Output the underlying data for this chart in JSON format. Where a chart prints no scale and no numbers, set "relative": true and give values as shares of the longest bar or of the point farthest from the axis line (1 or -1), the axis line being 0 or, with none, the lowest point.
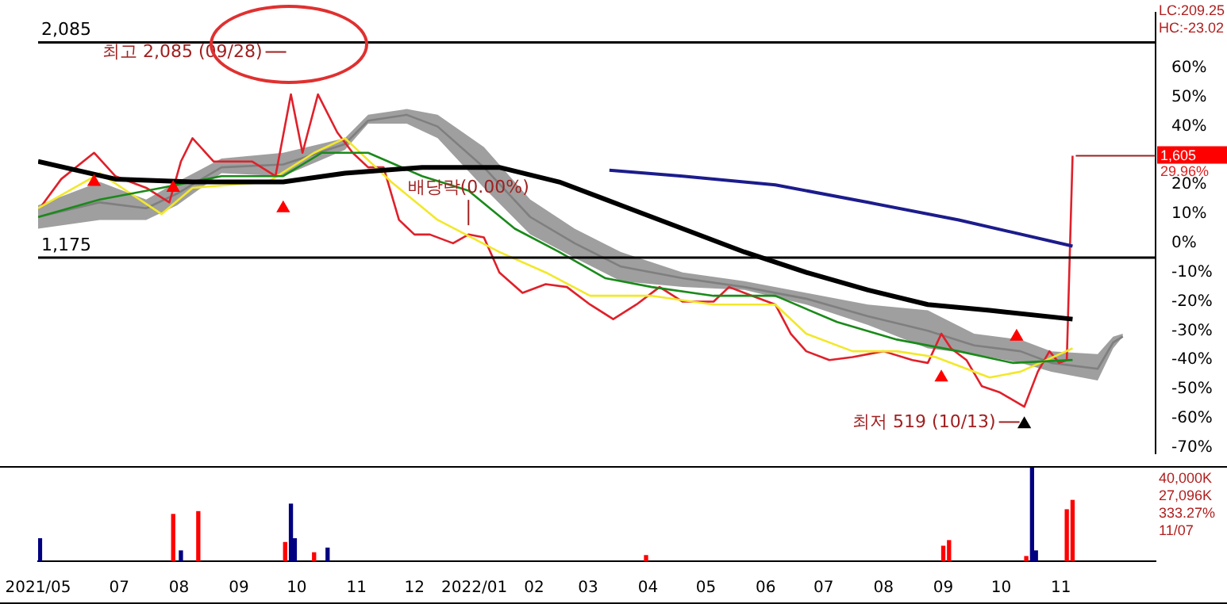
{
  "chart_data": [
    {
      "type": "line",
      "xlim": [
        "2021-05-20",
        "2022-12-20"
      ],
      "ylim": [
        -72,
        79
      ],
      "yticks": [
        {
          "value": 60,
          "label": "60%"
        },
        {
          "value": 50,
          "label": "50%"
        },
        {
          "value": 40,
          "label": "40%"
        },
        {
          "value": 20,
          "label": "20%"
        },
        {
          "value": 10,
          "label": "10%"
        },
        {
          "value": 0,
          "label": "0%"
        },
        {
          "value": -10,
          "label": "-10%"
        },
        {
          "value": -20,
          "label": "-20%"
        },
        {
          "value": -30,
          "label": "-30%"
        },
        {
          "value": -40,
          "label": "-40%"
        },
        {
          "value": -50,
          "label": "-50%"
        },
        {
          "value": -60,
          "label": "-60%"
        },
        {
          "value": -70,
          "label": "-70%"
        }
      ],
      "tick_labels": "y",
      "marker": "none",
      "line_style": "solid",
      "ref_lines": [
        {
          "axis": "y",
          "value": 68.8,
          "color": "#000000"
        },
        {
          "axis": "y",
          "value": -4.9,
          "color": "#000000"
        }
      ],
      "annotations": [
        {
          "text": "2,085",
          "x": "2021-05-20",
          "y": 68.8
        },
        {
          "text": "1,175",
          "x": "2021-05-20",
          "y": -4.9
        },
        {
          "text": "최고 2,085 (09/28)",
          "x": "2021-09-28",
          "y": 68.8
        },
        {
          "text": "최저 519 (10/13)",
          "x": "2022-10-13",
          "y": -58
        },
        {
          "text": "배당락(0.00%)",
          "x": "2021-12-29",
          "y": 4
        },
        {
          "text": "1,605",
          "x": "2022-11-07",
          "y": 29.96
        },
        {
          "text": "29.96%",
          "x": "2022-11-07",
          "y": 29.96
        },
        "LC:209.25",
        "HC:-23.02"
      ],
      "series": [
        {
          "color": "#7f7f7f",
          "x": [
            "2021-05-20",
            "2021-06-21",
            "2021-07-15",
            "2021-07-31",
            "2021-08-23",
            "2021-09-24",
            "2021-10-26",
            "2021-11-07",
            "2021-11-27",
            "2021-12-13",
            "2022-01-06",
            "2022-01-30",
            "2022-02-22",
            "2022-03-18",
            "2022-04-19",
            "2022-05-21",
            "2022-06-22",
            "2022-07-24",
            "2022-08-24",
            "2022-09-17",
            "2022-10-11",
            "2022-10-27",
            "2022-11-20",
            "2022-11-28",
            "2022-12-03"
          ],
          "values": [
            9,
            14,
            12,
            17,
            26,
            27,
            34,
            42,
            44,
            40,
            26,
            9,
            0,
            -8,
            -12,
            -15,
            -19,
            -25,
            -30,
            -35,
            -37,
            -41,
            -43,
            -34,
            -32
          ],
          "lower": [
            5,
            8,
            8,
            13,
            24,
            23,
            32,
            41,
            41,
            36,
            19,
            3,
            -5,
            -13,
            -15,
            -16,
            -21,
            -28,
            -36,
            -38,
            -41,
            -44,
            -47,
            -36,
            -32
          ],
          "upper": [
            13,
            21,
            15,
            21,
            29,
            31,
            36,
            44,
            46,
            44,
            33,
            15,
            5,
            -3,
            -10,
            -13,
            -17,
            -21,
            -23,
            -31,
            -33,
            -37,
            -38,
            -32,
            -31
          ]
        },
        {
          "color": "#1c1c8c",
          "x": [
            "2022-03-12",
            "2022-04-19",
            "2022-06-06",
            "2022-07-24",
            "2022-09-09",
            "2022-11-07"
          ],
          "values": [
            25,
            23,
            20,
            14,
            8,
            -1
          ]
        },
        {
          "color": "#000000",
          "x": [
            "2021-05-20",
            "2021-06-29",
            "2021-08-08",
            "2021-09-24",
            "2021-10-26",
            "2021-12-05",
            "2022-01-14",
            "2022-02-14",
            "2022-03-18",
            "2022-04-19",
            "2022-05-21",
            "2022-06-22",
            "2022-07-24",
            "2022-08-24",
            "2022-09-25",
            "2022-11-07"
          ],
          "values": [
            28,
            22,
            21,
            21,
            24,
            26,
            26,
            21,
            13,
            5,
            -3,
            -10,
            -16,
            -21,
            -23,
            -26
          ]
        },
        {
          "color": "#1a8a1a",
          "x": [
            "2021-05-20",
            "2021-06-21",
            "2021-07-23",
            "2021-08-23",
            "2021-09-24",
            "2021-10-14",
            "2021-11-07",
            "2021-12-05",
            "2021-12-29",
            "2022-01-22",
            "2022-02-14",
            "2022-03-10",
            "2022-04-03",
            "2022-05-05",
            "2022-06-06",
            "2022-07-08",
            "2022-08-08",
            "2022-09-09",
            "2022-10-07",
            "2022-11-07"
          ],
          "values": [
            9,
            15,
            19,
            23,
            23,
            31,
            31,
            23,
            18,
            5,
            -3,
            -12,
            -15,
            -18,
            -18,
            -27,
            -33,
            -37,
            -41,
            -40
          ]
        },
        {
          "color": "#f2e82a",
          "x": [
            "2021-05-20",
            "2021-06-21",
            "2021-07-23",
            "2021-08-08",
            "2021-09-16",
            "2021-10-10",
            "2021-10-26",
            "2021-11-19",
            "2021-12-13",
            "2022-01-14",
            "2022-02-07",
            "2022-03-02",
            "2022-04-03",
            "2022-05-05",
            "2022-06-06",
            "2022-06-22",
            "2022-07-16",
            "2022-08-08",
            "2022-08-28",
            "2022-09-25",
            "2022-10-11",
            "2022-11-07"
          ],
          "values": [
            12,
            24,
            10,
            19,
            21,
            31,
            36,
            21,
            8,
            -3,
            -10,
            -18,
            -18,
            -21,
            -21,
            -31,
            -37,
            -37,
            -39,
            -46,
            -44,
            -36
          ]
        },
        {
          "color": "#e0202a",
          "x": [
            "2021-05-22",
            "2021-06-01",
            "2021-06-18",
            "2021-06-29",
            "2021-07-15",
            "2021-07-27",
            "2021-08-02",
            "2021-08-08",
            "2021-08-19",
            "2021-08-27",
            "2021-09-08",
            "2021-09-20",
            "2021-09-28",
            "2021-10-04",
            "2021-10-12",
            "2021-10-22",
            "2021-10-30",
            "2021-11-07",
            "2021-11-15",
            "2021-11-23",
            "2021-12-01",
            "2021-12-09",
            "2021-12-21",
            "2021-12-29",
            "2022-01-06",
            "2022-01-14",
            "2022-01-26",
            "2022-02-07",
            "2022-02-18",
            "2022-03-02",
            "2022-03-14",
            "2022-03-26",
            "2022-04-07",
            "2022-04-19",
            "2022-05-05",
            "2022-05-13",
            "2022-05-25",
            "2022-06-06",
            "2022-06-14",
            "2022-06-22",
            "2022-07-04",
            "2022-07-16",
            "2022-08-01",
            "2022-08-16",
            "2022-08-24",
            "2022-08-31",
            "2022-09-05",
            "2022-09-13",
            "2022-09-21",
            "2022-09-30",
            "2022-10-13",
            "2022-10-20",
            "2022-10-26",
            "2022-10-31",
            "2022-11-04",
            "2022-11-07"
          ],
          "values": [
            13,
            22,
            31,
            23,
            19,
            14,
            28,
            36,
            28,
            28,
            28,
            23,
            51,
            31,
            51,
            38,
            31,
            26,
            26,
            8,
            3,
            3,
            0,
            3,
            2,
            -10,
            -17,
            -14,
            -15,
            -21,
            -26,
            -21,
            -15,
            -20,
            -20,
            -15,
            -18,
            -21,
            -31,
            -37,
            -40,
            -39,
            -37,
            -40,
            -41,
            -31,
            -36,
            -40,
            -49,
            -51,
            -56,
            -44,
            -37,
            -41,
            -40,
            29.96
          ]
        },
        {
          "type": "scatter",
          "marker": "triangle",
          "x": [
            "2021-06-18",
            "2021-07-29",
            "2021-09-24",
            "2022-08-31",
            "2022-10-09",
            "2022-10-13"
          ],
          "values": [
            21,
            19,
            12,
            -46,
            -32,
            -62
          ],
          "colors": [
            "#ff0000",
            "#ff0000",
            "#ff0000",
            "#ff0000",
            "#ff0000",
            "#000000"
          ]
        }
      ]
    },
    {
      "type": "bar",
      "relative": true,
      "xlim": [
        "2021-05-20",
        "2022-12-20"
      ],
      "xticks": [
        {
          "value": "2021-05-20",
          "label": "2021/05"
        },
        {
          "value": "2021-07-01",
          "label": "07"
        },
        {
          "value": "2021-08-01",
          "label": "08"
        },
        {
          "value": "2021-09-01",
          "label": "09"
        },
        {
          "value": "2021-10-01",
          "label": "10"
        },
        {
          "value": "2021-11-01",
          "label": "11"
        },
        {
          "value": "2021-12-01",
          "label": "12"
        },
        {
          "value": "2022-01-01",
          "label": "2022/01"
        },
        {
          "value": "2022-02-01",
          "label": "02"
        },
        {
          "value": "2022-03-01",
          "label": "03"
        },
        {
          "value": "2022-04-01",
          "label": "04"
        },
        {
          "value": "2022-05-01",
          "label": "05"
        },
        {
          "value": "2022-06-01",
          "label": "06"
        },
        {
          "value": "2022-07-01",
          "label": "07"
        },
        {
          "value": "2022-08-01",
          "label": "08"
        },
        {
          "value": "2022-09-01",
          "label": "09"
        },
        {
          "value": "2022-10-01",
          "label": "10"
        },
        {
          "value": "2022-11-01",
          "label": "11"
        }
      ],
      "tick_labels": "x",
      "annotations": [
        "40,000K",
        "27,096K",
        "333.27%",
        "11/07"
      ],
      "x": [
        "2021-05-21",
        "2021-07-29",
        "2021-08-02",
        "2021-08-11",
        "2021-09-25",
        "2021-09-28",
        "2021-09-30",
        "2021-10-10",
        "2021-10-17",
        "2022-03-31",
        "2022-09-01",
        "2022-09-04",
        "2022-10-14",
        "2022-10-17",
        "2022-10-19",
        "2022-11-04",
        "2022-11-07"
      ],
      "values": [
        0.24,
        0.5,
        0.11,
        0.53,
        0.2,
        0.61,
        0.24,
        0.09,
        0.14,
        0.06,
        0.16,
        0.22,
        0.05,
        1,
        0.11,
        0.55,
        0.65
      ],
      "colors": [
        "#000080",
        "#ff0000",
        "#000080",
        "#ff0000",
        "#ff0000",
        "#000080",
        "#000080",
        "#ff0000",
        "#000080",
        "#ff0000",
        "#ff0000",
        "#ff0000",
        "#ff0000",
        "#000080",
        "#000080",
        "#ff0000",
        "#ff0000"
      ]
    }
  ]
}
